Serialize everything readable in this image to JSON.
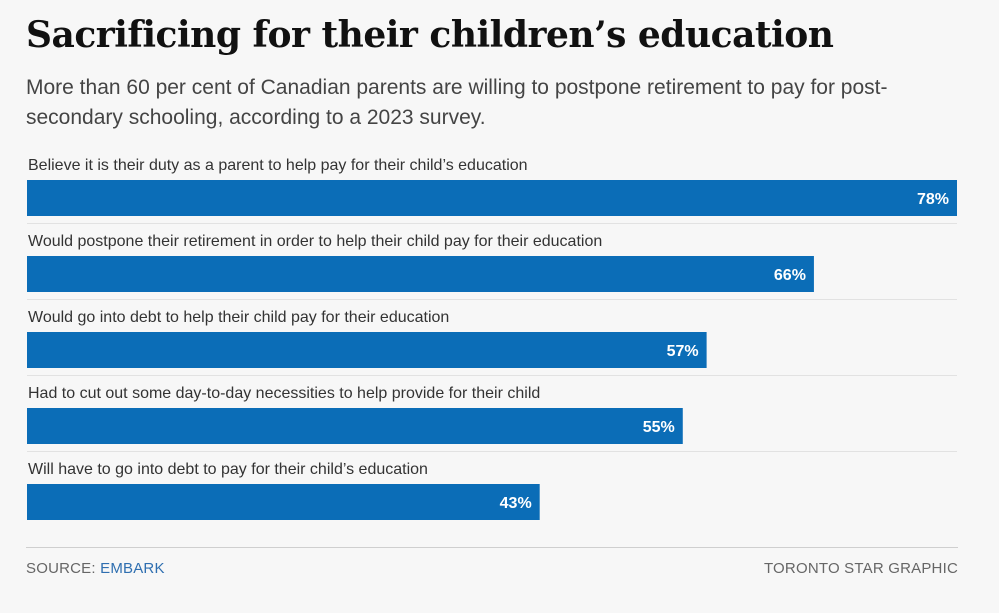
{
  "header": {
    "title": "Sacrificing for their children’s education",
    "subtitle": "More than 60 per cent of Canadian parents are willing to postpone retirement to pay for post-secondary schooling, according to a 2023 survey."
  },
  "chart_data": {
    "type": "bar",
    "orientation": "horizontal",
    "categories": [
      "Believe it is their duty as a parent to help pay for their child’s education",
      "Would postpone their retirement in order to help their child pay for their education",
      "Would go into debt to help their child pay for their education",
      "Had to cut out some day-to-day necessities to help provide for their child",
      "Will have to go into debt to pay for their child’s education"
    ],
    "values": [
      78,
      66,
      57,
      55,
      43
    ],
    "value_labels": [
      "78%",
      "66%",
      "57%",
      "55%",
      "43%"
    ],
    "xlim": [
      0,
      78
    ],
    "bar_color": "#0b6db7",
    "grid": false,
    "legend": "none"
  },
  "footer": {
    "source_prefix": "SOURCE:",
    "source_name": "EMBARK",
    "credit": "TORONTO STAR GRAPHIC"
  },
  "colors": {
    "bar": "#0b6db7",
    "source_link": "#2f6fb0"
  }
}
